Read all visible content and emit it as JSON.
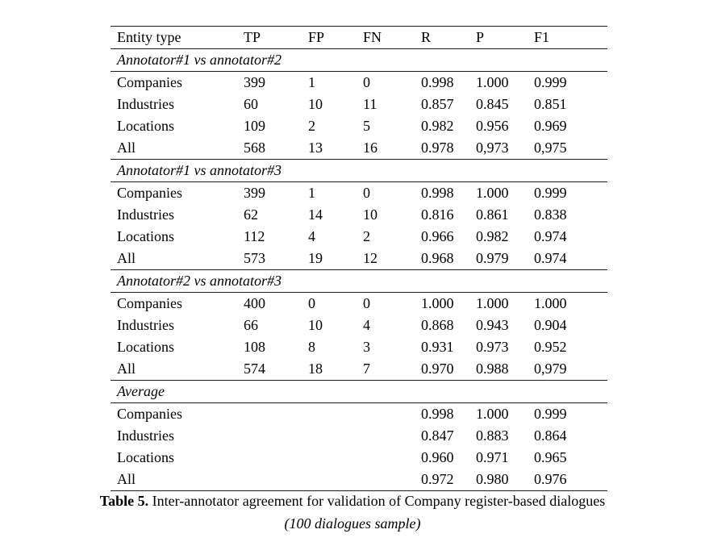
{
  "table": {
    "columns": [
      "Entity type",
      "TP",
      "FP",
      "FN",
      "R",
      "P",
      "F1"
    ],
    "sections": [
      {
        "title": "Annotator#1 vs annotator#2",
        "rows": [
          [
            "Companies",
            "399",
            "1",
            "0",
            "0.998",
            "1.000",
            "0.999"
          ],
          [
            "Industries",
            "60",
            "10",
            "11",
            "0.857",
            "0.845",
            "0.851"
          ],
          [
            "Locations",
            "109",
            "2",
            "5",
            "0.982",
            "0.956",
            "0.969"
          ],
          [
            "All",
            "568",
            "13",
            "16",
            "0.978",
            "0,973",
            "0,975"
          ]
        ]
      },
      {
        "title": "Annotator#1 vs annotator#3",
        "rows": [
          [
            "Companies",
            "399",
            "1",
            "0",
            "0.998",
            "1.000",
            "0.999"
          ],
          [
            "Industries",
            "62",
            "14",
            "10",
            "0.816",
            "0.861",
            "0.838"
          ],
          [
            "Locations",
            "112",
            "4",
            "2",
            "0.966",
            "0.982",
            "0.974"
          ],
          [
            "All",
            "573",
            "19",
            "12",
            "0.968",
            "0.979",
            "0.974"
          ]
        ]
      },
      {
        "title": "Annotator#2 vs annotator#3",
        "rows": [
          [
            "Companies",
            "400",
            "0",
            "0",
            "1.000",
            "1.000",
            "1.000"
          ],
          [
            "Industries",
            "66",
            "10",
            "4",
            "0.868",
            "0.943",
            "0.904"
          ],
          [
            "Locations",
            "108",
            "8",
            "3",
            "0.931",
            "0.973",
            "0.952"
          ],
          [
            "All",
            "574",
            "18",
            "7",
            "0.970",
            "0.988",
            "0,979"
          ]
        ]
      },
      {
        "title": "Average",
        "rows": [
          [
            "Companies",
            "",
            "",
            "",
            "0.998",
            "1.000",
            "0.999"
          ],
          [
            "Industries",
            "",
            "",
            "",
            "0.847",
            "0.883",
            "0.864"
          ],
          [
            "Locations",
            "",
            "",
            "",
            "0.960",
            "0.971",
            "0.965"
          ],
          [
            "All",
            "",
            "",
            "",
            "0.972",
            "0.980",
            "0.976"
          ]
        ]
      }
    ]
  },
  "caption": {
    "label": "Table 5.",
    "text": "Inter-annotator agreement for validation of Company register-based dialogues",
    "subtext": "(100 dialogues sample)"
  }
}
